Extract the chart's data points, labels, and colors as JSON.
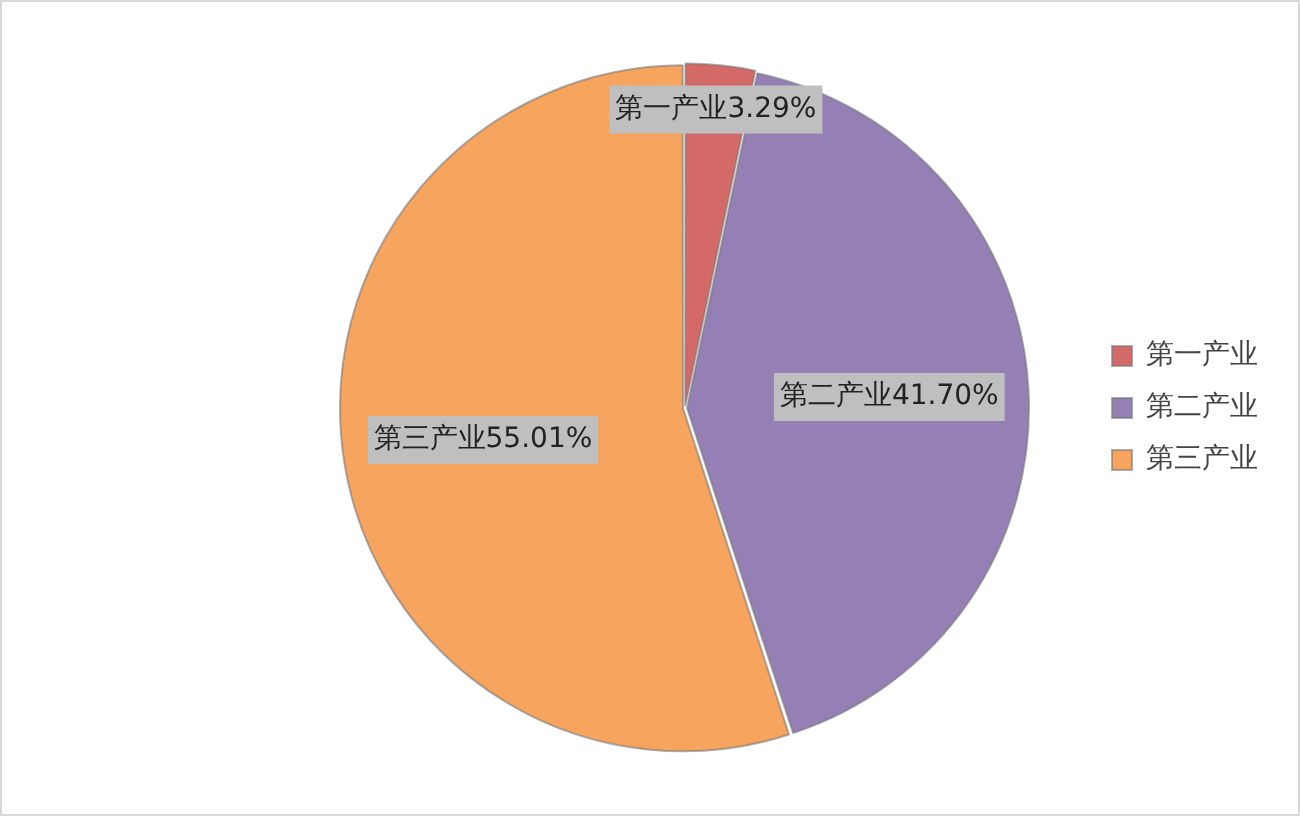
{
  "chart_data": {
    "type": "pie",
    "categories": [
      "第一产业",
      "第二产业",
      "第三产业"
    ],
    "values": [
      3.29,
      41.7,
      55.01
    ],
    "colors": [
      "#d46a67",
      "#9580b5",
      "#f7a45e"
    ],
    "value_labels": [
      "第一产业3.29%",
      "第二产业41.70%",
      "第三产业55.01%"
    ],
    "legend": "right"
  }
}
